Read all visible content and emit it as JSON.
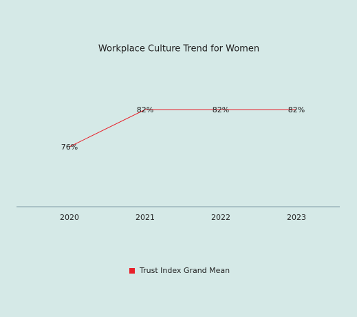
{
  "chart_data": {
    "type": "line",
    "title": "Workplace Culture Trend for Women",
    "categories": [
      "2020",
      "2021",
      "2022",
      "2023"
    ],
    "series": [
      {
        "name": "Trust Index Grand Mean",
        "color": "#e8202a",
        "values": [
          76,
          82,
          82,
          82
        ],
        "value_labels": [
          "76%",
          "82%",
          "82%",
          "82%"
        ]
      }
    ],
    "ylim": [
      66,
      89
    ],
    "legend": "bottom"
  }
}
